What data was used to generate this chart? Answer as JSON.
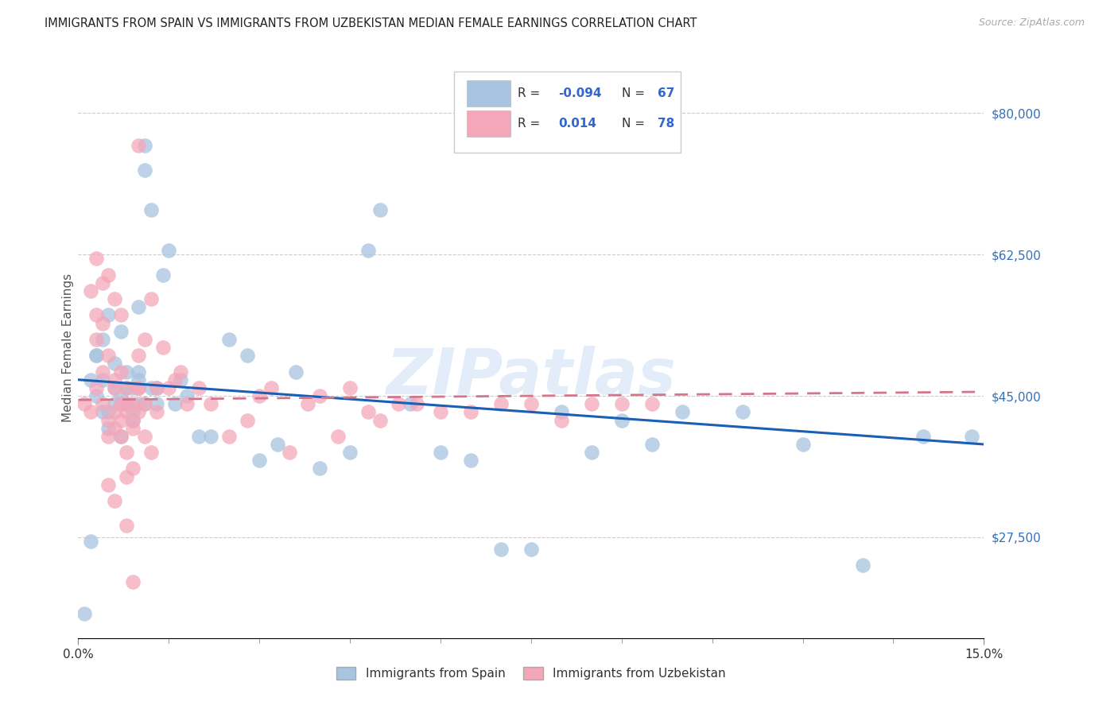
{
  "title": "IMMIGRANTS FROM SPAIN VS IMMIGRANTS FROM UZBEKISTAN MEDIAN FEMALE EARNINGS CORRELATION CHART",
  "source": "Source: ZipAtlas.com",
  "ylabel": "Median Female Earnings",
  "watermark": "ZIPatlas",
  "xlim": [
    0.0,
    0.15
  ],
  "ylim": [
    15000,
    87000
  ],
  "yticks": [
    27500,
    45000,
    62500,
    80000
  ],
  "ytick_labels": [
    "$27,500",
    "$45,000",
    "$62,500",
    "$80,000"
  ],
  "xticks": [
    0.0,
    0.15
  ],
  "xtick_labels": [
    "0.0%",
    "15.0%"
  ],
  "legend_r_spain": "-0.094",
  "legend_n_spain": "67",
  "legend_r_uzbekistan": "0.014",
  "legend_n_uzbekistan": "78",
  "spain_color": "#a8c4e0",
  "uzbekistan_color": "#f4a7b9",
  "spain_line_color": "#1a5fb4",
  "uzbekistan_line_color": "#d4758a",
  "background_color": "#ffffff",
  "grid_color": "#cccccc",
  "title_color": "#222222",
  "title_fontsize": 10.5,
  "axis_label_color": "#555555",
  "ytick_color": "#3070c0",
  "xtick_color": "#333333",
  "legend_color": "#3366cc",
  "spain_x": [
    0.001,
    0.002,
    0.003,
    0.004,
    0.004,
    0.005,
    0.005,
    0.006,
    0.006,
    0.007,
    0.007,
    0.007,
    0.008,
    0.008,
    0.009,
    0.009,
    0.01,
    0.01,
    0.01,
    0.011,
    0.011,
    0.012,
    0.013,
    0.014,
    0.015,
    0.016,
    0.017,
    0.018,
    0.02,
    0.022,
    0.025,
    0.028,
    0.03,
    0.033,
    0.036,
    0.04,
    0.045,
    0.048,
    0.05,
    0.055,
    0.06,
    0.065,
    0.07,
    0.075,
    0.08,
    0.085,
    0.09,
    0.095,
    0.1,
    0.11,
    0.12,
    0.13,
    0.14,
    0.148,
    0.003,
    0.004,
    0.005,
    0.006,
    0.007,
    0.008,
    0.009,
    0.01,
    0.011,
    0.012,
    0.013,
    0.002,
    0.003
  ],
  "spain_y": [
    18000,
    27000,
    45000,
    52000,
    47000,
    43000,
    55000,
    46000,
    44000,
    53000,
    45000,
    40000,
    44000,
    48000,
    46000,
    42000,
    47000,
    44000,
    56000,
    73000,
    76000,
    68000,
    46000,
    60000,
    63000,
    44000,
    47000,
    45000,
    40000,
    40000,
    52000,
    50000,
    37000,
    39000,
    48000,
    36000,
    38000,
    63000,
    68000,
    44000,
    38000,
    37000,
    26000,
    26000,
    43000,
    38000,
    42000,
    39000,
    43000,
    43000,
    39000,
    24000,
    40000,
    40000,
    50000,
    43000,
    41000,
    49000,
    44000,
    46000,
    43000,
    48000,
    44000,
    46000,
    44000,
    47000,
    50000
  ],
  "uzbekistan_x": [
    0.001,
    0.002,
    0.003,
    0.003,
    0.004,
    0.004,
    0.005,
    0.005,
    0.006,
    0.006,
    0.006,
    0.007,
    0.007,
    0.008,
    0.008,
    0.009,
    0.009,
    0.01,
    0.01,
    0.011,
    0.011,
    0.012,
    0.013,
    0.014,
    0.015,
    0.016,
    0.017,
    0.018,
    0.02,
    0.022,
    0.025,
    0.028,
    0.03,
    0.032,
    0.035,
    0.038,
    0.04,
    0.043,
    0.045,
    0.048,
    0.05,
    0.053,
    0.056,
    0.06,
    0.065,
    0.07,
    0.075,
    0.08,
    0.085,
    0.09,
    0.095,
    0.002,
    0.003,
    0.004,
    0.005,
    0.006,
    0.007,
    0.008,
    0.008,
    0.009,
    0.01,
    0.011,
    0.012,
    0.013,
    0.003,
    0.004,
    0.005,
    0.006,
    0.007,
    0.008,
    0.009,
    0.01,
    0.005,
    0.006,
    0.007,
    0.008,
    0.009,
    0.01
  ],
  "uzbekistan_y": [
    44000,
    43000,
    52000,
    46000,
    44000,
    48000,
    42000,
    40000,
    43000,
    47000,
    41000,
    55000,
    48000,
    46000,
    43000,
    44000,
    41000,
    43000,
    50000,
    52000,
    44000,
    57000,
    46000,
    51000,
    46000,
    47000,
    48000,
    44000,
    46000,
    44000,
    40000,
    42000,
    45000,
    46000,
    38000,
    44000,
    45000,
    40000,
    46000,
    43000,
    42000,
    44000,
    44000,
    43000,
    43000,
    44000,
    44000,
    42000,
    44000,
    44000,
    44000,
    58000,
    55000,
    59000,
    60000,
    57000,
    44000,
    35000,
    29000,
    22000,
    76000,
    40000,
    38000,
    43000,
    62000,
    54000,
    50000,
    46000,
    42000,
    38000,
    36000,
    46000,
    34000,
    32000,
    40000,
    44000,
    42000,
    46000
  ],
  "spain_line_x0": 0.0,
  "spain_line_y0": 47000,
  "spain_line_x1": 0.15,
  "spain_line_y1": 39000,
  "uzbekistan_line_x0": 0.0,
  "uzbekistan_line_y0": 44500,
  "uzbekistan_line_x1": 0.15,
  "uzbekistan_line_y1": 45500
}
